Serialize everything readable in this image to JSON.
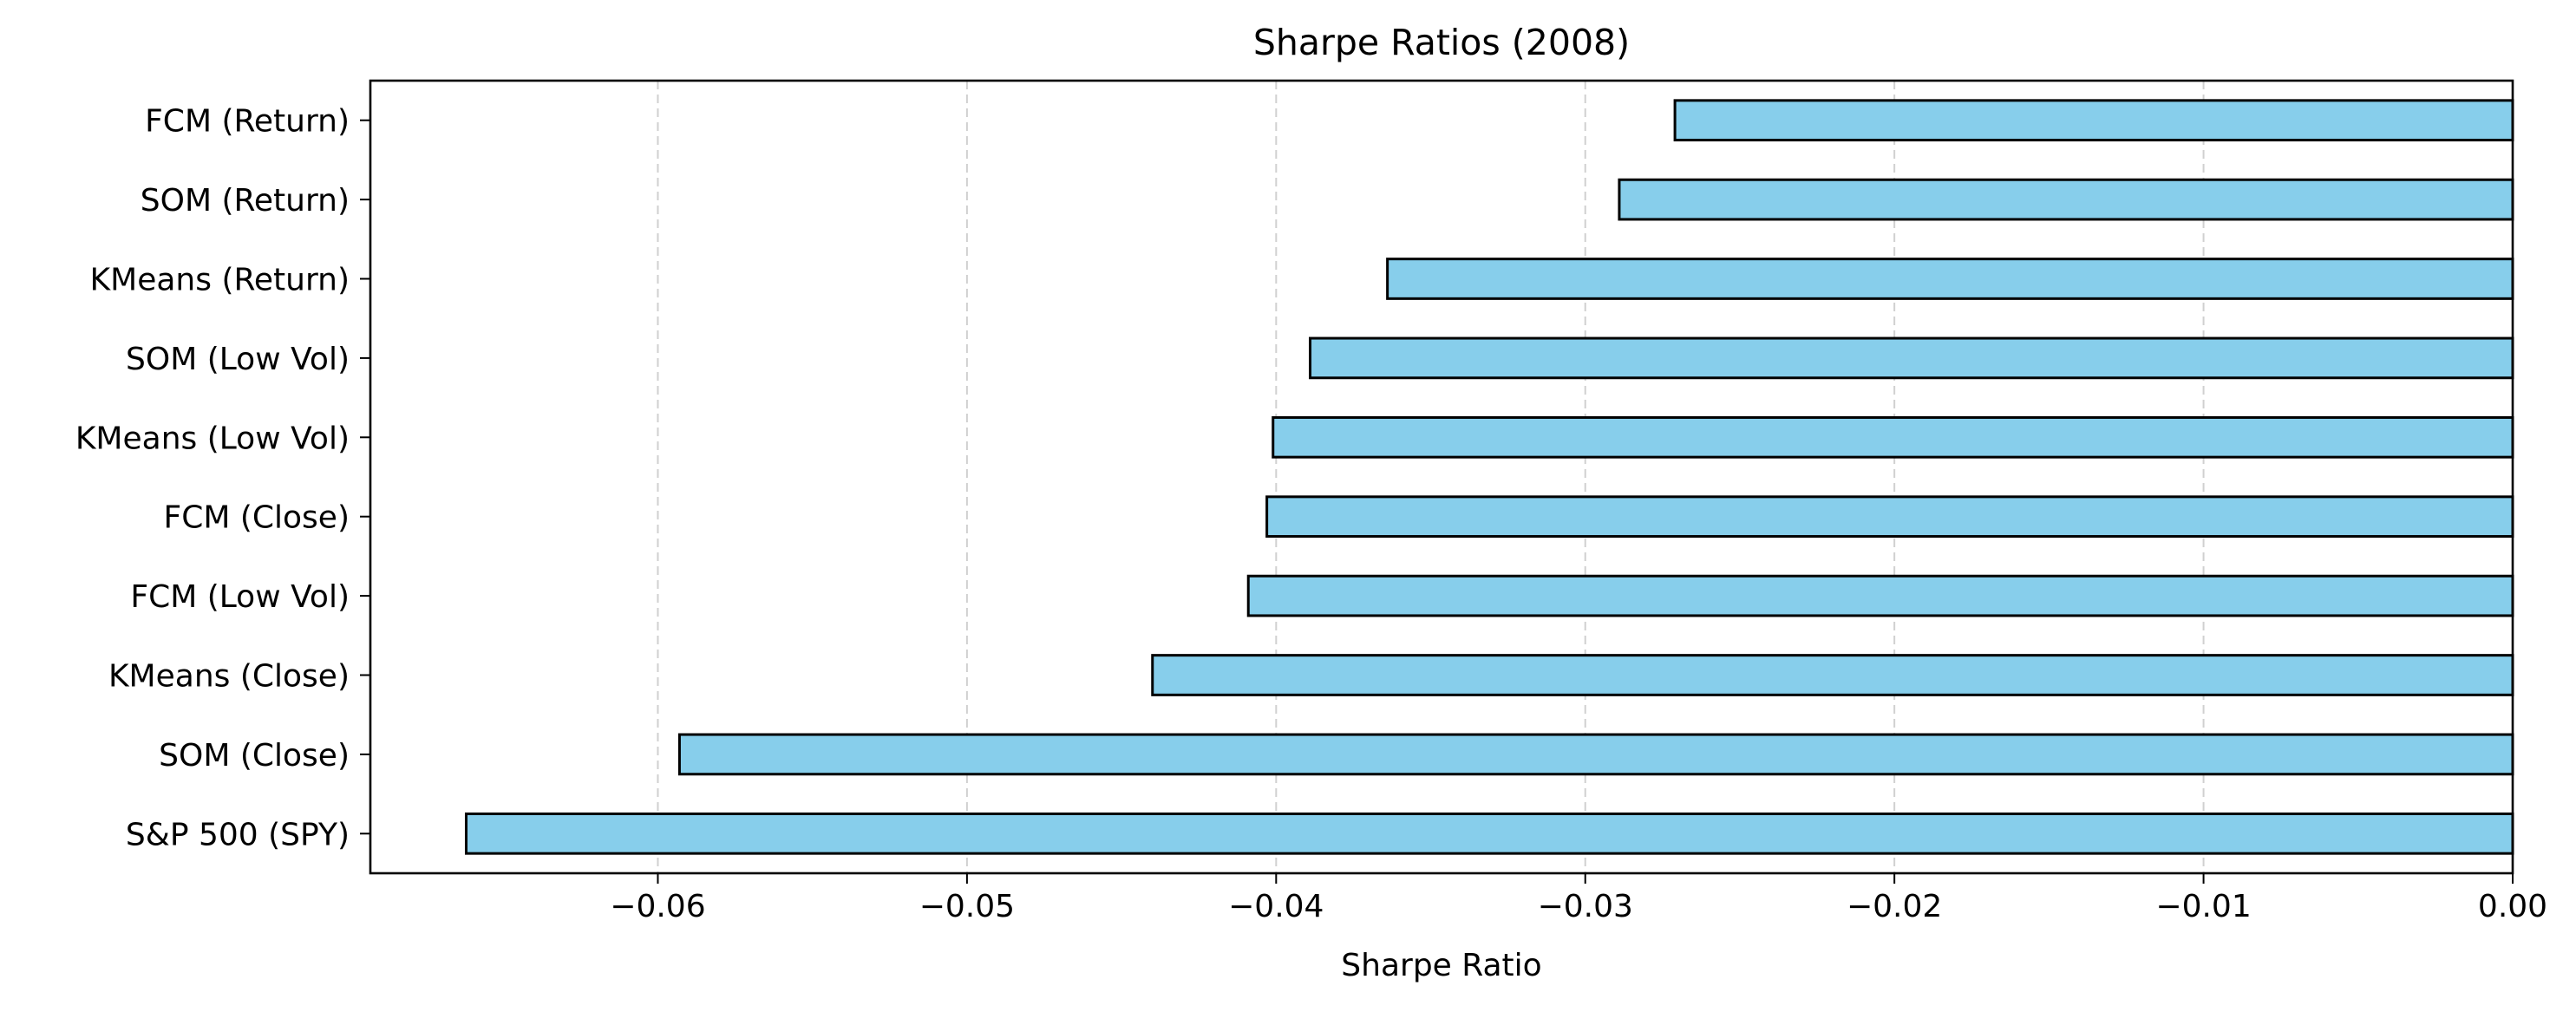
{
  "chart_data": {
    "type": "bar",
    "orientation": "horizontal",
    "title": "Sharpe Ratios (2008)",
    "xlabel": "Sharpe Ratio",
    "ylabel": "",
    "categories": [
      "FCM (Return)",
      "SOM (Return)",
      "KMeans (Return)",
      "SOM (Low Vol)",
      "KMeans (Low Vol)",
      "FCM (Close)",
      "FCM (Low Vol)",
      "KMeans (Close)",
      "SOM (Close)",
      "S&P 500 (SPY)"
    ],
    "values": [
      -0.0271,
      -0.0289,
      -0.0364,
      -0.0389,
      -0.0401,
      -0.0403,
      -0.0409,
      -0.044,
      -0.0593,
      -0.0662
    ],
    "xlim": [
      -0.0693,
      0.0
    ],
    "xticks": [
      -0.06,
      -0.05,
      -0.04,
      -0.03,
      -0.02,
      -0.01,
      0.0
    ],
    "xtick_labels": [
      "−0.06",
      "−0.05",
      "−0.04",
      "−0.03",
      "−0.02",
      "−0.01",
      "0.00"
    ],
    "grid": "x-axis dashed",
    "legend": "none",
    "colors": {
      "bar_fill": "#87CEEB",
      "bar_edge": "#000000",
      "grid": "#d0d0d0"
    }
  }
}
